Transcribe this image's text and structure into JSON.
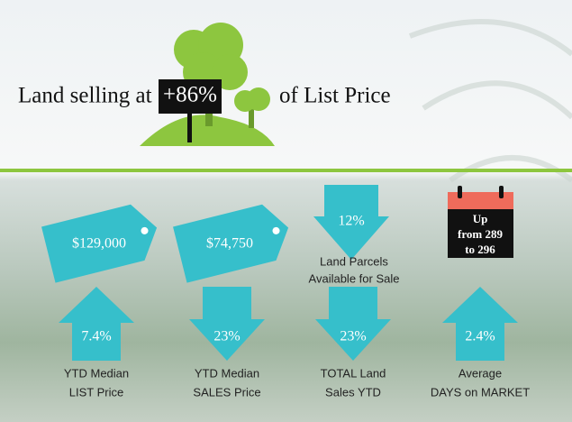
{
  "header": {
    "prefix": "Land selling at",
    "sign": "+86%",
    "suffix": "of List Price"
  },
  "tags": [
    {
      "value": "$129,000"
    },
    {
      "value": "$74,750"
    }
  ],
  "parcels": {
    "value": "12%",
    "label_lines": [
      "Land Parcels",
      "Available for Sale"
    ]
  },
  "calendar": {
    "lines": [
      "Up",
      "from 289",
      "to 296"
    ]
  },
  "stats": [
    {
      "value": "7.4%",
      "direction": "up",
      "label_lines": [
        "YTD Median",
        "LIST Price"
      ]
    },
    {
      "value": "23%",
      "direction": "down",
      "label_lines": [
        "YTD Median",
        "SALES Price"
      ]
    },
    {
      "value": "23%",
      "direction": "down",
      "label_lines": [
        "TOTAL Land",
        "Sales YTD"
      ]
    },
    {
      "value": "2.4%",
      "direction": "up",
      "label_lines": [
        "Average",
        "DAYS on MARKET"
      ]
    }
  ]
}
